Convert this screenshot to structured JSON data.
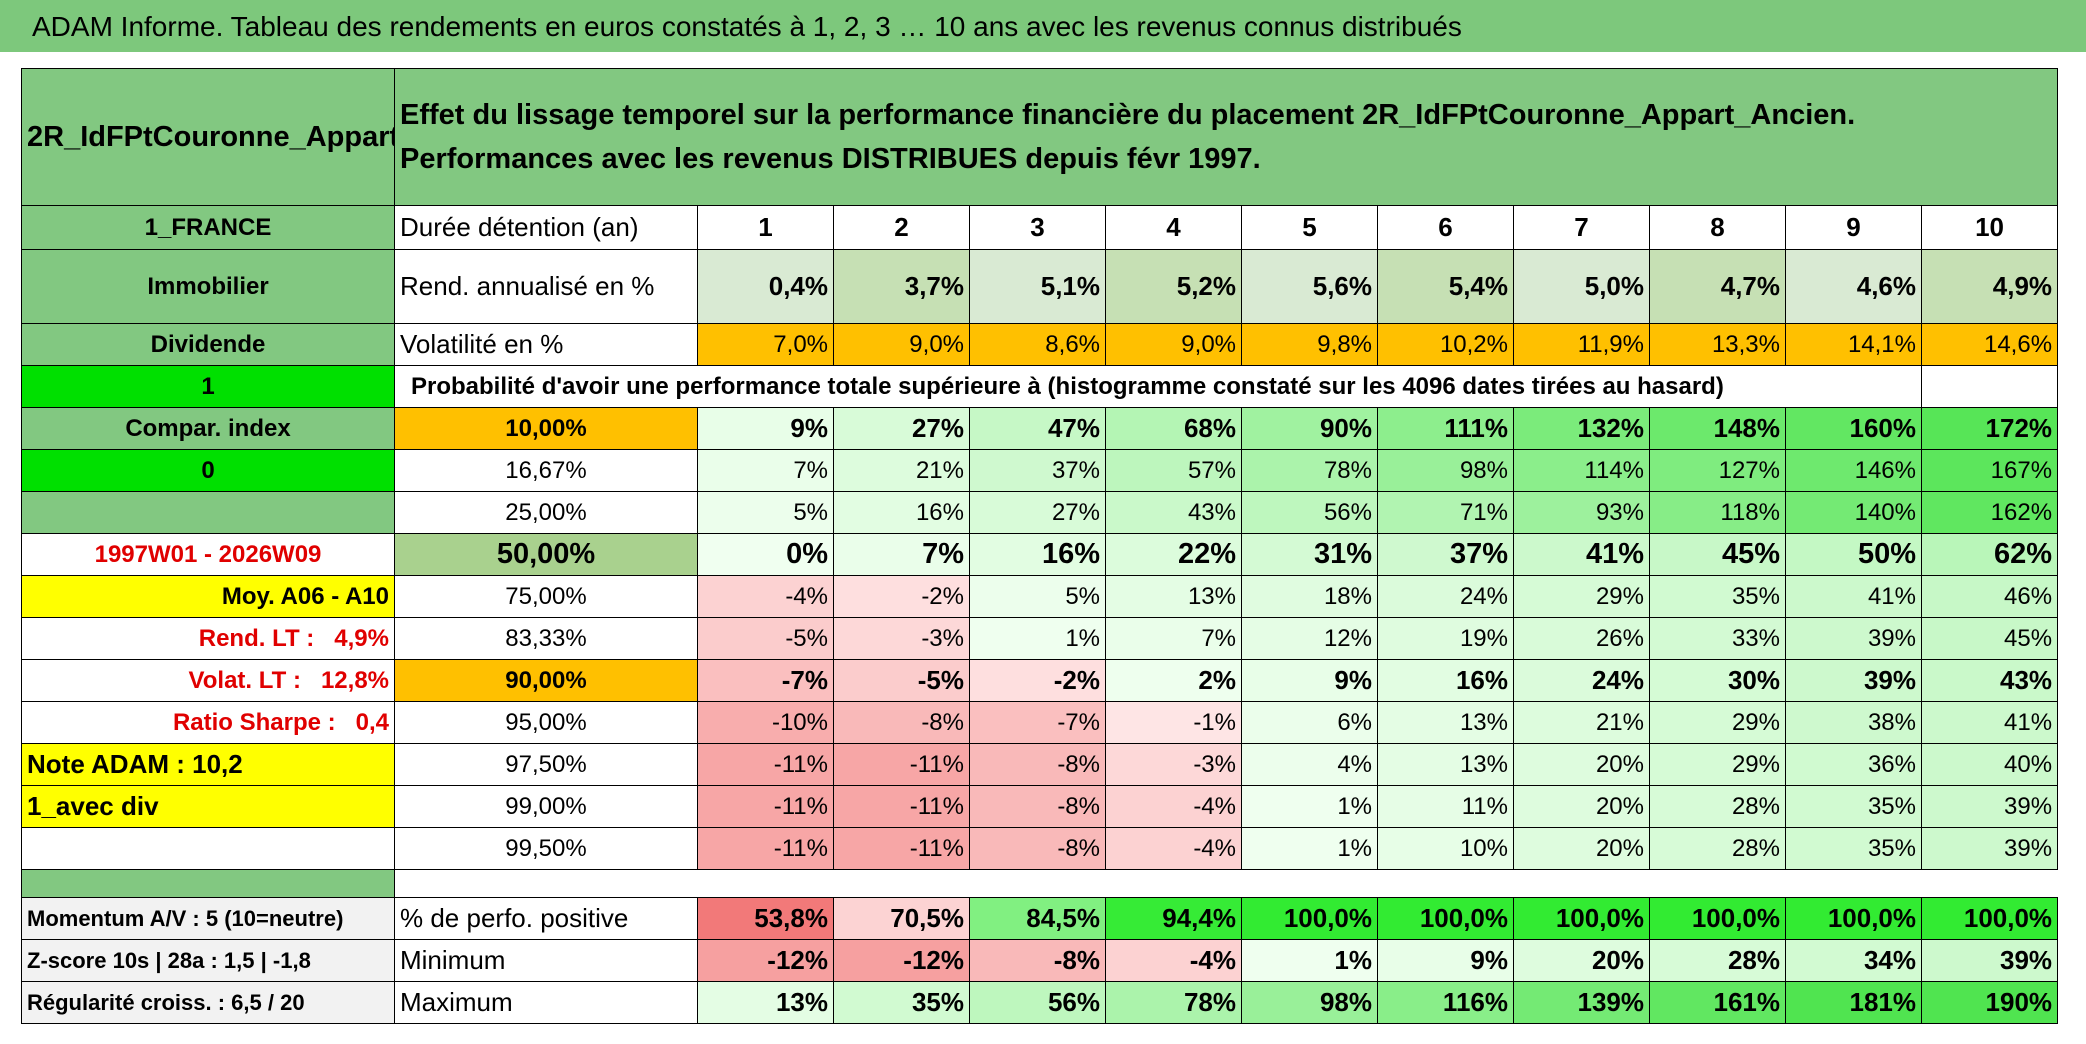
{
  "header": {
    "title": "ADAM Informe. Tableau des rendements en euros constatés à 1, 2, 3 … 10 ans avec les revenus connus distribués"
  },
  "table": {
    "name": "2R_IdFPtCouronne_Appart_Ancien",
    "description": "Effet du lissage temporel sur la performance financière du placement 2R_IdFPtCouronne_Appart_Ancien. Performances avec les revenus DISTRIBUES depuis févr 1997.",
    "rows": [
      {
        "label": "1_FRANCE",
        "key": "Durée détention (an)",
        "values": [
          "1",
          "2",
          "3",
          "4",
          "5",
          "6",
          "7",
          "8",
          "9",
          "10"
        ]
      },
      {
        "label": "Immobilier",
        "key": "Rend. annualisé en %",
        "values": [
          "0,4%",
          "3,7%",
          "5,1%",
          "5,2%",
          "5,6%",
          "5,4%",
          "5,0%",
          "4,7%",
          "4,6%",
          "4,9%"
        ]
      },
      {
        "label": "Dividende",
        "key": "Volatilité en %",
        "values": [
          "7,0%",
          "9,0%",
          "8,6%",
          "9,0%",
          "9,8%",
          "10,2%",
          "11,9%",
          "13,3%",
          "14,1%",
          "14,6%"
        ]
      },
      {
        "label": "1",
        "note": "Probabilité d'avoir une performance totale supérieure à (histogramme constaté sur les 4096 dates tirées au hasard)"
      },
      {
        "label": "Compar. index",
        "key": "10,00%",
        "values": [
          "9%",
          "27%",
          "47%",
          "68%",
          "90%",
          "111%",
          "132%",
          "148%",
          "160%",
          "172%"
        ]
      },
      {
        "label": "0",
        "key": "16,67%",
        "values": [
          "7%",
          "21%",
          "37%",
          "57%",
          "78%",
          "98%",
          "114%",
          "127%",
          "146%",
          "167%"
        ]
      },
      {
        "key": "25,00%",
        "values": [
          "5%",
          "16%",
          "27%",
          "43%",
          "56%",
          "71%",
          "93%",
          "118%",
          "140%",
          "162%"
        ]
      },
      {
        "label": "1997W01 - 2026W09",
        "key": "50,00%",
        "values": [
          "0%",
          "7%",
          "16%",
          "22%",
          "31%",
          "37%",
          "41%",
          "45%",
          "50%",
          "62%"
        ]
      },
      {
        "label": "Moy. A06 - A10",
        "key": "75,00%",
        "values": [
          "-4%",
          "-2%",
          "5%",
          "13%",
          "18%",
          "24%",
          "29%",
          "35%",
          "41%",
          "46%"
        ]
      },
      {
        "label": "Rend. LT :   4,9%",
        "key": "83,33%",
        "values": [
          "-5%",
          "-3%",
          "1%",
          "7%",
          "12%",
          "19%",
          "26%",
          "33%",
          "39%",
          "45%"
        ]
      },
      {
        "label": "Volat. LT :   12,8%",
        "key": "90,00%",
        "values": [
          "-7%",
          "-5%",
          "-2%",
          "2%",
          "9%",
          "16%",
          "24%",
          "30%",
          "39%",
          "43%"
        ]
      },
      {
        "label": "Ratio Sharpe :   0,4",
        "key": "95,00%",
        "values": [
          "-10%",
          "-8%",
          "-7%",
          "-1%",
          "6%",
          "13%",
          "21%",
          "29%",
          "38%",
          "41%"
        ]
      },
      {
        "label": "Note ADAM : 10,2",
        "key": "97,50%",
        "values": [
          "-11%",
          "-11%",
          "-8%",
          "-3%",
          "4%",
          "13%",
          "20%",
          "29%",
          "36%",
          "40%"
        ]
      },
      {
        "label": "1_avec div",
        "key": "99,00%",
        "values": [
          "-11%",
          "-11%",
          "-8%",
          "-4%",
          "1%",
          "11%",
          "20%",
          "28%",
          "35%",
          "39%"
        ]
      },
      {
        "key": "99,50%",
        "values": [
          "-11%",
          "-11%",
          "-8%",
          "-4%",
          "1%",
          "10%",
          "20%",
          "28%",
          "35%",
          "39%"
        ]
      },
      {
        "label": "Momentum A/V : 5 (10=neutre)",
        "key": "% de perfo. positive",
        "values": [
          "53,8%",
          "70,5%",
          "84,5%",
          "94,4%",
          "100,0%",
          "100,0%",
          "100,0%",
          "100,0%",
          "100,0%",
          "100,0%"
        ]
      },
      {
        "label": "Z-score 10s | 28a : 1,5 | -1,8",
        "key": "Minimum",
        "values": [
          "-12%",
          "-12%",
          "-8%",
          "-4%",
          "1%",
          "9%",
          "20%",
          "28%",
          "34%",
          "39%"
        ]
      },
      {
        "label": "Régularité croiss. : 6,5 / 20",
        "key": "Maximum",
        "values": [
          "13%",
          "35%",
          "56%",
          "78%",
          "98%",
          "116%",
          "139%",
          "161%",
          "181%",
          "190%"
        ]
      }
    ]
  }
}
